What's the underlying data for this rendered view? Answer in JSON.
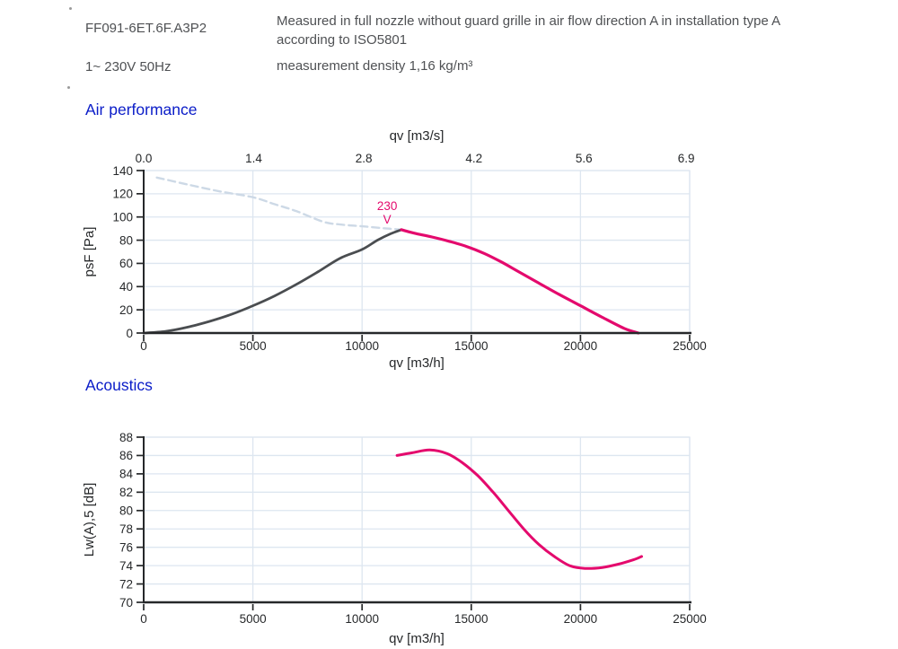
{
  "header": {
    "model": "FF091-6ET.6F.A3P2",
    "power": "1~ 230V 50Hz",
    "measure_note": "Measured in full nozzle without guard grille in air flow direction A in installation type A according to ISO5801",
    "density_note": "measurement density 1,16 kg/m³"
  },
  "sections": {
    "air_performance_title": "Air performance",
    "acoustics_title": "Acoustics"
  },
  "colors": {
    "heading_blue": "#0a1cc8",
    "header_text_gray": "#4f5154",
    "axis": "#26282a",
    "grid": "#dde6f0",
    "curve_pink": "#e40a6d",
    "curve_gray": "#4a4d50",
    "curve_dashed_blue": "#cdd9e6"
  },
  "chart_data": [
    {
      "id": "air",
      "type": "line",
      "title": "Air performance",
      "xlabel": "qv [m3/h]",
      "x2label": "qv [m3/s]",
      "ylabel": "psF [Pa]",
      "xlim": [
        0,
        25000
      ],
      "ylim": [
        0,
        140
      ],
      "x_ticks": [
        0,
        5000,
        10000,
        15000,
        20000,
        25000
      ],
      "x2_ticks": [
        "0.0",
        "1.4",
        "2.8",
        "4.2",
        "5.6",
        "6.9"
      ],
      "x2_factor": 3600,
      "y_ticks": [
        0,
        20,
        40,
        60,
        80,
        100,
        120,
        140
      ],
      "grid": true,
      "annotation": {
        "lines": [
          "230",
          "V"
        ],
        "x": 11150,
        "y": 112,
        "color": "#e40a6d"
      },
      "series": [
        {
          "name": "limit-curve-dashed",
          "color": "#cdd9e6",
          "dashed": true,
          "points": [
            [
              600,
              134
            ],
            [
              2000,
              128
            ],
            [
              3500,
              122
            ],
            [
              5000,
              117
            ],
            [
              6000,
              111
            ],
            [
              7000,
              105
            ],
            [
              8200,
              96
            ],
            [
              9000,
              93.5
            ],
            [
              10000,
              92
            ],
            [
              11000,
              90.3
            ],
            [
              11900,
              89
            ]
          ]
        },
        {
          "name": "duct-resistance-curve-gray",
          "color": "#4a4d50",
          "dashed": false,
          "points": [
            [
              0,
              0
            ],
            [
              1000,
              1.5
            ],
            [
              2000,
              5
            ],
            [
              3000,
              10
            ],
            [
              4000,
              16
            ],
            [
              5000,
              23.5
            ],
            [
              6000,
              32
            ],
            [
              7000,
              42
            ],
            [
              8000,
              53
            ],
            [
              9000,
              64.5
            ],
            [
              10000,
              72
            ],
            [
              10700,
              80
            ],
            [
              11300,
              85.5
            ],
            [
              11800,
              89
            ]
          ]
        },
        {
          "name": "fan-curve-230V-pink",
          "color": "#e40a6d",
          "dashed": false,
          "points": [
            [
              11800,
              89
            ],
            [
              12400,
              86
            ],
            [
              13200,
              82.8
            ],
            [
              14000,
              79
            ],
            [
              14800,
              74.5
            ],
            [
              15600,
              68.5
            ],
            [
              16400,
              61
            ],
            [
              17200,
              52.5
            ],
            [
              18000,
              44
            ],
            [
              19000,
              33.5
            ],
            [
              20000,
              23.5
            ],
            [
              21000,
              13.5
            ],
            [
              22000,
              4
            ],
            [
              22650,
              0
            ]
          ]
        }
      ]
    },
    {
      "id": "acoustics",
      "type": "line",
      "title": "Acoustics",
      "xlabel": "qv [m3/h]",
      "ylabel": "Lw(A),5 [dB]",
      "xlim": [
        0,
        25000
      ],
      "ylim": [
        70,
        88
      ],
      "x_ticks": [
        0,
        5000,
        10000,
        15000,
        20000,
        25000
      ],
      "y_ticks": [
        70,
        72,
        74,
        76,
        78,
        80,
        82,
        84,
        86,
        88
      ],
      "grid": true,
      "series": [
        {
          "name": "sound-power-level-230V-pink",
          "color": "#e40a6d",
          "dashed": false,
          "points": [
            [
              11600,
              86.0
            ],
            [
              12300,
              86.3
            ],
            [
              13100,
              86.6
            ],
            [
              13900,
              86.2
            ],
            [
              14600,
              85.2
            ],
            [
              15300,
              83.8
            ],
            [
              16000,
              82
            ],
            [
              16700,
              80
            ],
            [
              17400,
              78
            ],
            [
              18100,
              76.3
            ],
            [
              18800,
              75
            ],
            [
              19500,
              74
            ],
            [
              20200,
              73.7
            ],
            [
              21000,
              73.8
            ],
            [
              21800,
              74.2
            ],
            [
              22500,
              74.7
            ],
            [
              22800,
              75
            ]
          ]
        }
      ]
    }
  ]
}
